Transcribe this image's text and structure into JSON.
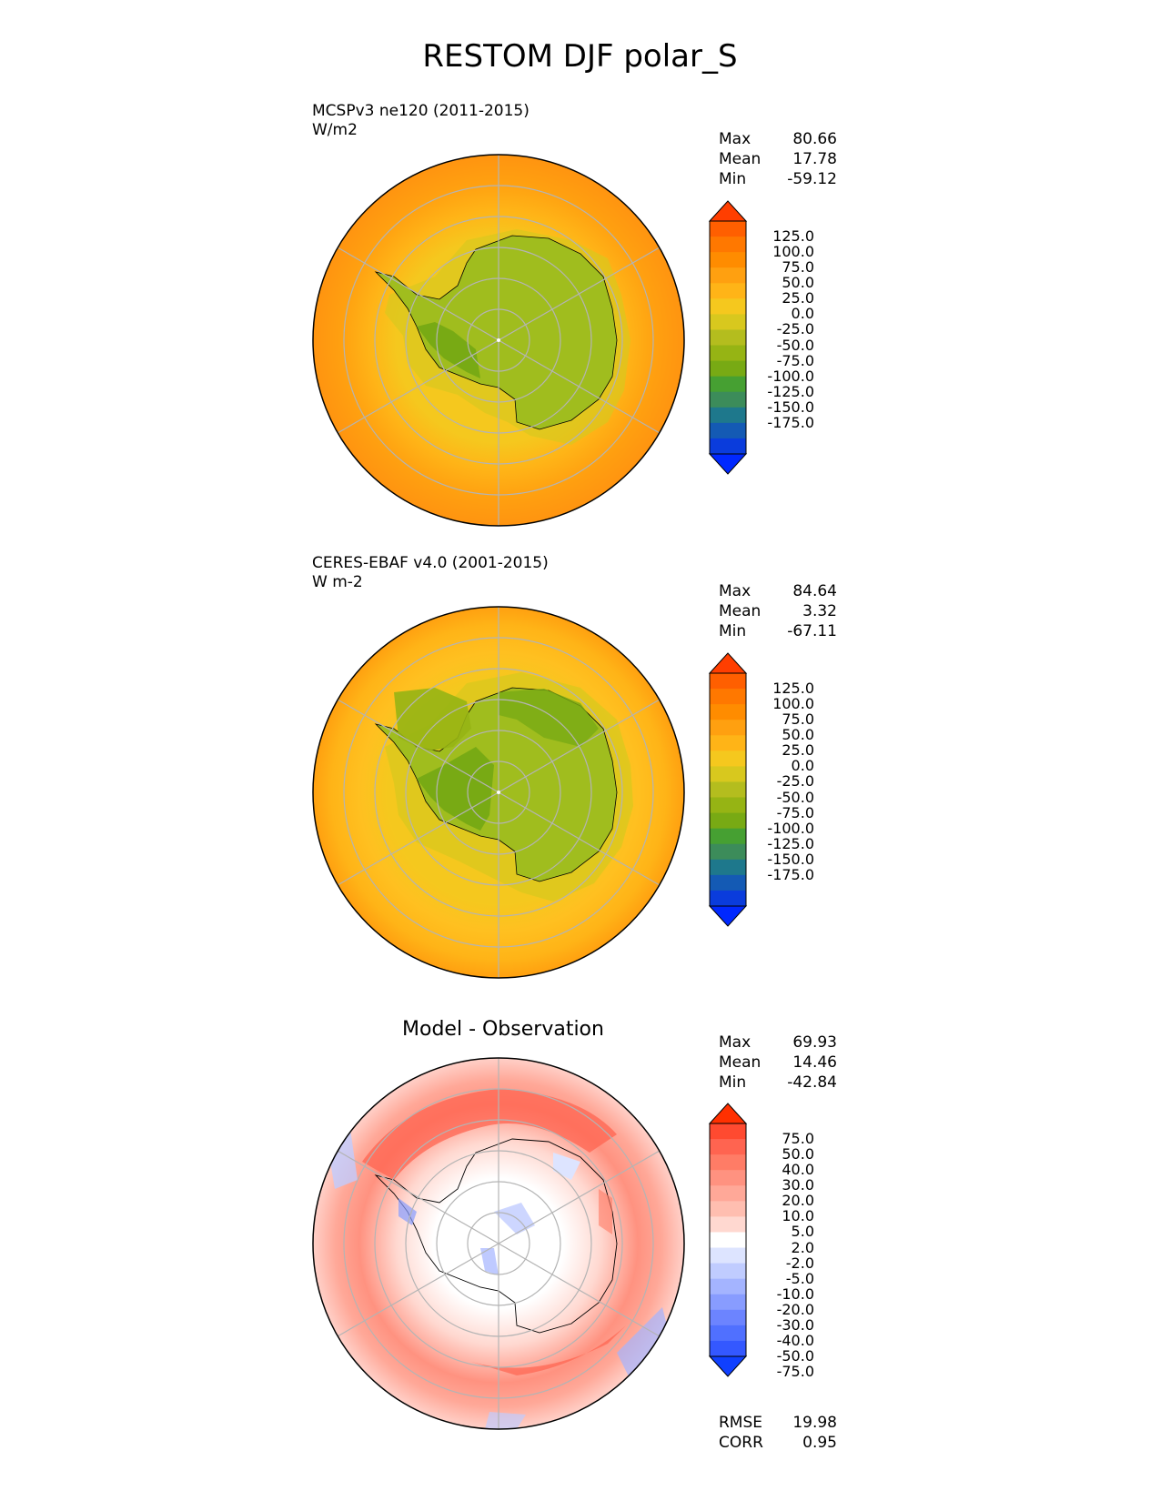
{
  "title": "RESTOM DJF polar_S",
  "panels": [
    {
      "id": "model",
      "caption_line1": "MCSPv3 ne120 (2011-2015)",
      "caption_line2": "W/m2",
      "stats": {
        "max_label": "Max",
        "max": "80.66",
        "mean_label": "Mean",
        "mean": "17.78",
        "min_label": "Min",
        "min": "-59.12"
      },
      "colorbar_labels": [
        "125.0",
        "100.0",
        "75.0",
        "50.0",
        "25.0",
        "0.0",
        "-25.0",
        "-50.0",
        "-75.0",
        "-100.0",
        "-125.0",
        "-150.0",
        "-175.0"
      ],
      "colorbar_colors": [
        "#ff3e00",
        "#ff5f00",
        "#ff7800",
        "#ff8c00",
        "#ffa010",
        "#ffb417",
        "#f5c81e",
        "#d8c81e",
        "#b4bd1e",
        "#96b414",
        "#78aa14",
        "#46a032",
        "#3c8c5a",
        "#1e788c",
        "#145ab4",
        "#0a3cdc",
        "#0028ff"
      ]
    },
    {
      "id": "observation",
      "caption_line1": "CERES-EBAF v4.0 (2001-2015)",
      "caption_line2": "W m-2",
      "stats": {
        "max_label": "Max",
        "max": "84.64",
        "mean_label": "Mean",
        "mean": "3.32",
        "min_label": "Min",
        "min": "-67.11"
      },
      "colorbar_labels": [
        "125.0",
        "100.0",
        "75.0",
        "50.0",
        "25.0",
        "0.0",
        "-25.0",
        "-50.0",
        "-75.0",
        "-100.0",
        "-125.0",
        "-150.0",
        "-175.0"
      ]
    },
    {
      "id": "difference",
      "title": "Model - Observation",
      "stats": {
        "max_label": "Max",
        "max": "69.93",
        "mean_label": "Mean",
        "mean": "14.46",
        "min_label": "Min",
        "min": "-42.84"
      },
      "colorbar_labels": [
        "75.0",
        "50.0",
        "40.0",
        "30.0",
        "20.0",
        "10.0",
        "5.0",
        "2.0",
        "-2.0",
        "-5.0",
        "-10.0",
        "-20.0",
        "-30.0",
        "-40.0",
        "-50.0",
        "-75.0"
      ],
      "colorbar_colors": [
        "#ff3000",
        "#ff4a30",
        "#ff6450",
        "#ff7c66",
        "#ff9280",
        "#ffa898",
        "#ffbeb0",
        "#ffd8d0",
        "#ffffff",
        "#dde4ff",
        "#c0ccff",
        "#a4b4ff",
        "#889cff",
        "#6c84ff",
        "#5070ff",
        "#3458ff",
        "#1040ff"
      ],
      "scores": {
        "rmse_label": "RMSE",
        "rmse": "19.98",
        "corr_label": "CORR",
        "corr": "0.95"
      }
    }
  ]
}
